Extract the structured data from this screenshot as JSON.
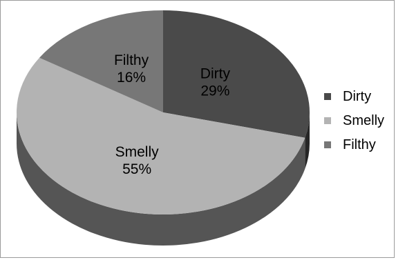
{
  "chart_data": {
    "type": "pie",
    "style": "3d",
    "categories": [
      "Dirty",
      "Smelly",
      "Filthy"
    ],
    "values": [
      29,
      55,
      16
    ],
    "percent_labels": [
      "29%",
      "55%",
      "16%"
    ],
    "colors": [
      "#4a4a4a",
      "#b3b3b3",
      "#777777"
    ],
    "side_colors": [
      "#262626",
      "#555555",
      "#444444"
    ],
    "legend": {
      "placement": "right",
      "entries": [
        "Dirty",
        "Smelly",
        "Filthy"
      ]
    }
  }
}
